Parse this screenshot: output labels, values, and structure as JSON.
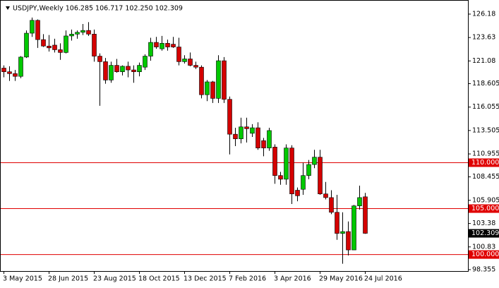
{
  "chart_data": {
    "type": "candlestick",
    "title": "USDJPY,Weekly  106.285 106.717 102.250 102.309",
    "categories": [
      "3 May 2015",
      null,
      null,
      null,
      null,
      null,
      null,
      null,
      "28 Jun 2015",
      null,
      null,
      null,
      null,
      null,
      null,
      null,
      "23 Aug 2015",
      null,
      null,
      null,
      null,
      null,
      null,
      null,
      "18 Oct 2015",
      null,
      null,
      null,
      null,
      null,
      null,
      null,
      "13 Dec 2015",
      null,
      null,
      null,
      null,
      null,
      null,
      null,
      "7 Feb 2016",
      null,
      null,
      null,
      null,
      null,
      null,
      null,
      "3 Apr 2016",
      null,
      null,
      null,
      null,
      null,
      null,
      null,
      "29 May 2016",
      null,
      null,
      null,
      null,
      null,
      null,
      null,
      "24 Jul 2016"
    ],
    "open": [
      120.3,
      119.9,
      119.7,
      119.4,
      121.5,
      124.1,
      125.5,
      123.4,
      122.7,
      122.8,
      122.3,
      122.0,
      123.8,
      124.0,
      124.2,
      124.4,
      124.0,
      121.6,
      121.0,
      119.0,
      120.6,
      119.9,
      120.5,
      120.1,
      119.9,
      120.4,
      121.6,
      123.1,
      122.4,
      123.0,
      122.9,
      122.6,
      121.0,
      121.3,
      120.6,
      120.4,
      117.4,
      118.8,
      117.0,
      121.1,
      116.9,
      113.1,
      112.6,
      113.9,
      113.2,
      113.8,
      112.4,
      111.6,
      111.7,
      108.6,
      108.2,
      111.6,
      107.0,
      107.1,
      108.6,
      109.8,
      110.6,
      106.6,
      106.2,
      104.6,
      102.3,
      102.5,
      100.5,
      105.3,
      106.285
    ],
    "high": [
      120.6,
      120.5,
      120.1,
      121.6,
      124.4,
      125.8,
      125.6,
      124.0,
      123.9,
      123.5,
      123.0,
      124.4,
      124.5,
      124.4,
      125.1,
      125.3,
      124.5,
      121.9,
      121.4,
      121.0,
      121.3,
      120.6,
      121.0,
      120.6,
      120.9,
      121.8,
      123.6,
      123.7,
      123.8,
      123.4,
      123.7,
      123.6,
      121.7,
      122.0,
      121.0,
      120.6,
      119.0,
      118.9,
      121.7,
      121.5,
      117.2,
      113.8,
      114.9,
      114.9,
      114.2,
      114.4,
      112.7,
      113.8,
      112.0,
      109.0,
      112.0,
      111.9,
      107.3,
      110.0,
      110.3,
      111.4,
      111.4,
      107.9,
      107.0,
      106.5,
      104.6,
      103.6,
      105.4,
      107.5,
      106.717
    ],
    "low": [
      119.3,
      118.9,
      118.9,
      119.2,
      121.4,
      123.7,
      122.5,
      122.6,
      122.1,
      122.0,
      121.2,
      121.9,
      123.3,
      123.5,
      123.9,
      123.8,
      121.0,
      116.2,
      118.6,
      118.7,
      119.8,
      119.5,
      119.3,
      118.7,
      119.4,
      120.1,
      121.1,
      122.4,
      122.2,
      122.2,
      122.5,
      120.6,
      120.8,
      120.5,
      120.2,
      117.0,
      116.7,
      116.5,
      116.5,
      116.5,
      110.9,
      111.8,
      112.1,
      112.2,
      112.8,
      111.4,
      110.7,
      111.3,
      107.7,
      107.6,
      107.6,
      105.5,
      105.8,
      106.5,
      108.2,
      109.4,
      106.5,
      106.0,
      104.4,
      101.6,
      99.0,
      99.9,
      100.5,
      104.9,
      102.25
    ],
    "close": [
      119.9,
      119.7,
      119.4,
      121.5,
      124.1,
      125.5,
      123.4,
      122.7,
      122.5,
      122.3,
      122.0,
      123.8,
      124.0,
      124.2,
      124.4,
      124.0,
      121.6,
      121.0,
      119.0,
      120.6,
      119.9,
      120.5,
      120.1,
      119.9,
      120.6,
      121.6,
      123.1,
      122.6,
      123.0,
      122.6,
      122.6,
      121.0,
      121.3,
      120.6,
      120.4,
      117.4,
      118.8,
      117.0,
      121.1,
      116.9,
      113.1,
      112.6,
      113.9,
      113.7,
      113.8,
      111.6,
      111.6,
      113.5,
      108.6,
      108.2,
      111.6,
      106.6,
      106.4,
      108.6,
      109.8,
      110.6,
      106.6,
      106.2,
      104.6,
      102.3,
      102.5,
      100.5,
      105.3,
      106.2,
      102.309
    ],
    "up_color": "#00c800",
    "down_color": "#d40000",
    "ylim": [
      98.2,
      127.1
    ],
    "yticks": [
      126.18,
      123.63,
      121.08,
      118.605,
      116.055,
      113.505,
      110.955,
      108.455,
      105.905,
      103.38,
      100.83,
      98.355
    ],
    "levels": [
      {
        "value": 110,
        "label": "110.000"
      },
      {
        "value": 105,
        "label": "105.000"
      },
      {
        "value": 100,
        "label": "100.000"
      }
    ],
    "level_color": "#e00000",
    "price_label": 102.309
  }
}
